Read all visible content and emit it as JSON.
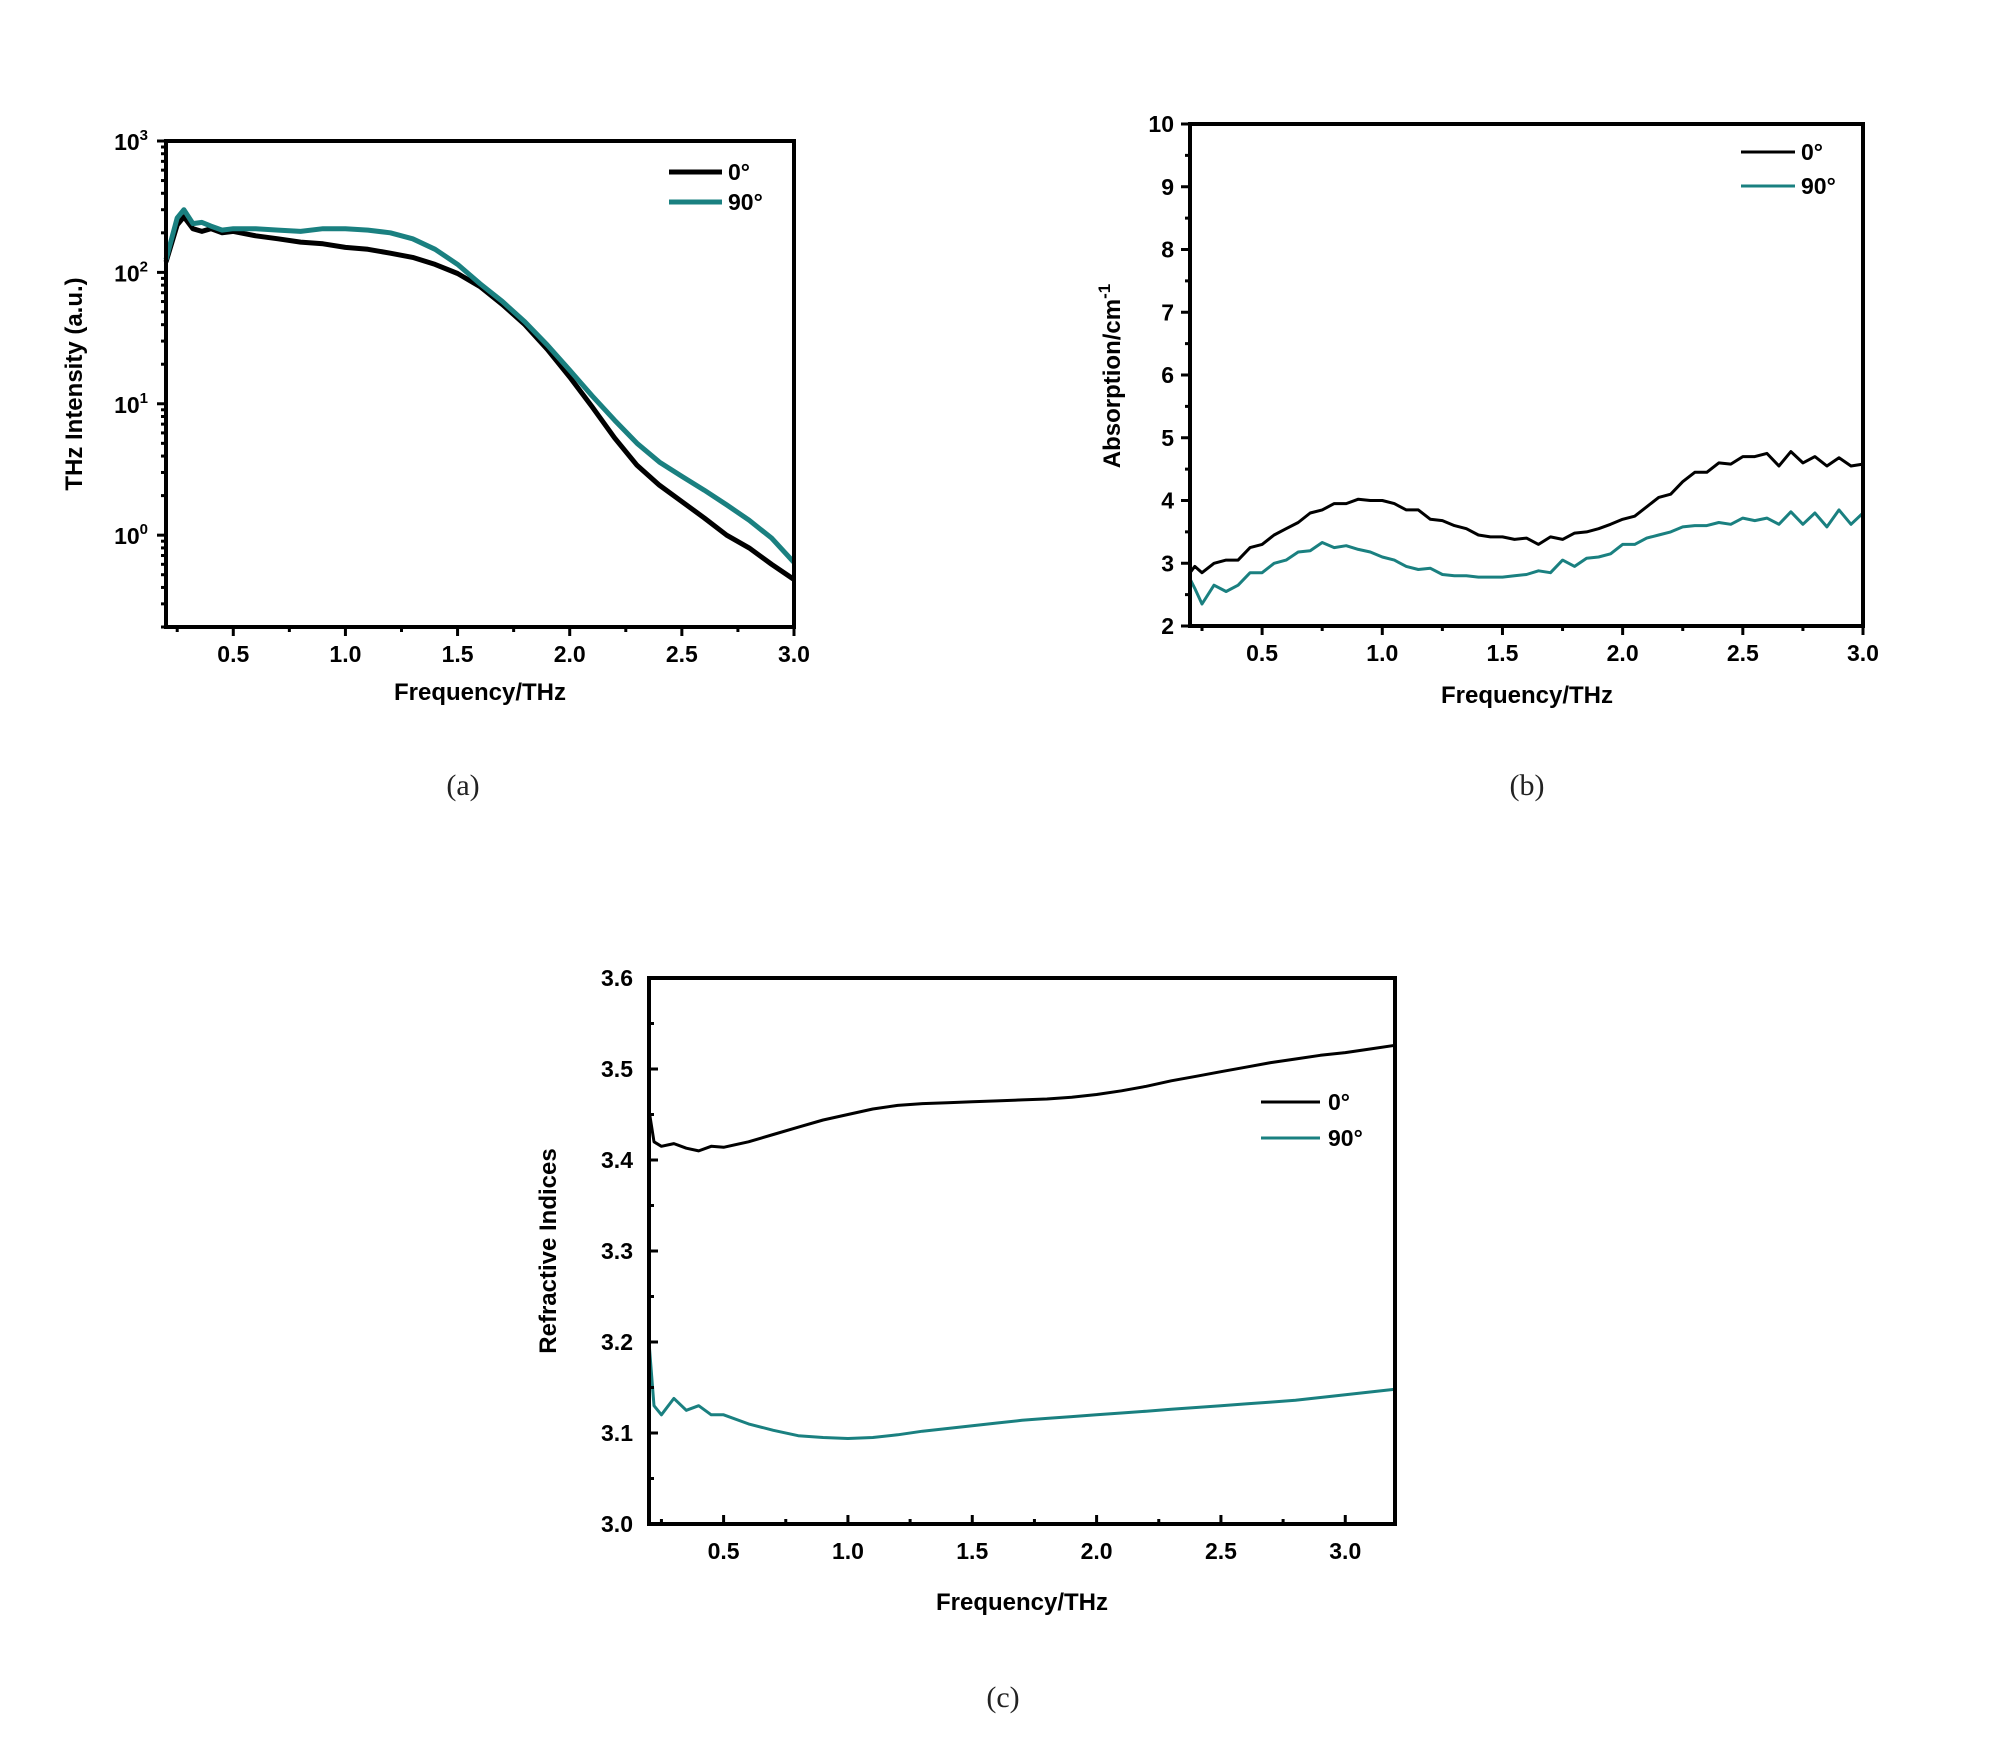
{
  "colors": {
    "series_0": "#000000",
    "series_90": "#1a8080"
  },
  "chart_data": [
    {
      "id": "a",
      "type": "line",
      "caption": "(a)",
      "xlabel": "Frequency/THz",
      "ylabel": "THz Intensity (a.u.)",
      "yscale": "log",
      "xlim": [
        0.2,
        3.0
      ],
      "ylim": [
        0.2,
        1000
      ],
      "xticks": [
        "0.5",
        "1.0",
        "1.5",
        "2.0",
        "2.5",
        "3.0"
      ],
      "xtick_values": [
        0.5,
        1.0,
        1.5,
        2.0,
        2.5,
        3.0
      ],
      "yticks": [
        {
          "base": "10",
          "exp": "0",
          "value": 1
        },
        {
          "base": "10",
          "exp": "1",
          "value": 10
        },
        {
          "base": "10",
          "exp": "2",
          "value": 100
        },
        {
          "base": "10",
          "exp": "3",
          "value": 1000
        }
      ],
      "legend": {
        "position": "top-right",
        "entries": [
          "0°",
          "90°"
        ]
      },
      "x": [
        0.2,
        0.25,
        0.28,
        0.32,
        0.36,
        0.4,
        0.45,
        0.5,
        0.6,
        0.7,
        0.8,
        0.9,
        1.0,
        1.1,
        1.2,
        1.3,
        1.4,
        1.5,
        1.6,
        1.7,
        1.8,
        1.9,
        2.0,
        2.1,
        2.2,
        2.3,
        2.4,
        2.5,
        2.6,
        2.7,
        2.8,
        2.9,
        3.0
      ],
      "series": [
        {
          "name": "0°",
          "values": [
            120,
            230,
            265,
            215,
            205,
            215,
            200,
            205,
            190,
            180,
            170,
            165,
            155,
            150,
            140,
            130,
            115,
            98,
            78,
            57,
            40,
            26,
            16,
            9.5,
            5.5,
            3.4,
            2.4,
            1.8,
            1.35,
            1.0,
            0.8,
            0.6,
            0.46
          ]
        },
        {
          "name": "90°",
          "values": [
            125,
            260,
            300,
            235,
            240,
            225,
            210,
            215,
            215,
            210,
            205,
            215,
            215,
            210,
            200,
            180,
            150,
            115,
            82,
            60,
            42,
            28,
            18,
            11.5,
            7.5,
            5.0,
            3.6,
            2.8,
            2.2,
            1.7,
            1.3,
            0.95,
            0.62
          ]
        }
      ]
    },
    {
      "id": "b",
      "type": "line",
      "caption": "(b)",
      "xlabel": "Frequency/THz",
      "ylabel": "Absorption/cm",
      "ylabel_sup": "-1",
      "xlim": [
        0.2,
        3.0
      ],
      "ylim": [
        2,
        10
      ],
      "xticks": [
        "0.5",
        "1.0",
        "1.5",
        "2.0",
        "2.5",
        "3.0"
      ],
      "xtick_values": [
        0.5,
        1.0,
        1.5,
        2.0,
        2.5,
        3.0
      ],
      "yticks": [
        "2",
        "3",
        "4",
        "5",
        "6",
        "7",
        "8",
        "9",
        "10"
      ],
      "ytick_values": [
        2,
        3,
        4,
        5,
        6,
        7,
        8,
        9,
        10
      ],
      "legend": {
        "position": "top-right",
        "entries": [
          "0°",
          "90°"
        ]
      },
      "x": [
        0.2,
        0.22,
        0.25,
        0.3,
        0.35,
        0.4,
        0.45,
        0.5,
        0.55,
        0.6,
        0.65,
        0.7,
        0.75,
        0.8,
        0.85,
        0.9,
        0.95,
        1.0,
        1.05,
        1.1,
        1.15,
        1.2,
        1.25,
        1.3,
        1.35,
        1.4,
        1.45,
        1.5,
        1.55,
        1.6,
        1.65,
        1.7,
        1.75,
        1.8,
        1.85,
        1.9,
        1.95,
        2.0,
        2.05,
        2.1,
        2.15,
        2.2,
        2.25,
        2.3,
        2.35,
        2.4,
        2.45,
        2.5,
        2.55,
        2.6,
        2.65,
        2.7,
        2.75,
        2.8,
        2.85,
        2.9,
        2.95,
        3.0
      ],
      "series": [
        {
          "name": "0°",
          "values": [
            2.85,
            2.95,
            2.85,
            3.0,
            3.05,
            3.05,
            3.25,
            3.3,
            3.45,
            3.55,
            3.65,
            3.8,
            3.85,
            3.95,
            3.95,
            4.02,
            4.0,
            4.0,
            3.95,
            3.85,
            3.85,
            3.7,
            3.68,
            3.6,
            3.55,
            3.45,
            3.42,
            3.42,
            3.38,
            3.4,
            3.3,
            3.42,
            3.38,
            3.48,
            3.5,
            3.55,
            3.62,
            3.7,
            3.75,
            3.9,
            4.05,
            4.1,
            4.3,
            4.45,
            4.45,
            4.6,
            4.58,
            4.7,
            4.7,
            4.75,
            4.55,
            4.78,
            4.6,
            4.7,
            4.55,
            4.68,
            4.55,
            4.58
          ]
        },
        {
          "name": "90°",
          "values": [
            2.75,
            2.6,
            2.35,
            2.65,
            2.55,
            2.65,
            2.85,
            2.85,
            3.0,
            3.05,
            3.18,
            3.2,
            3.33,
            3.25,
            3.28,
            3.22,
            3.18,
            3.1,
            3.05,
            2.95,
            2.9,
            2.92,
            2.82,
            2.8,
            2.8,
            2.78,
            2.78,
            2.78,
            2.8,
            2.82,
            2.88,
            2.85,
            3.05,
            2.95,
            3.08,
            3.1,
            3.15,
            3.3,
            3.3,
            3.4,
            3.45,
            3.5,
            3.58,
            3.6,
            3.6,
            3.65,
            3.62,
            3.72,
            3.68,
            3.72,
            3.62,
            3.82,
            3.62,
            3.8,
            3.58,
            3.85,
            3.62,
            3.8
          ]
        }
      ]
    },
    {
      "id": "c",
      "type": "line",
      "caption": "(c)",
      "xlabel": "Frequency/THz",
      "ylabel": "Refractive Indices",
      "xlim": [
        0.2,
        3.2
      ],
      "ylim": [
        3.0,
        3.6
      ],
      "xticks": [
        "0.5",
        "1.0",
        "1.5",
        "2.0",
        "2.5",
        "3.0"
      ],
      "xtick_values": [
        0.5,
        1.0,
        1.5,
        2.0,
        2.5,
        3.0
      ],
      "yticks": [
        "3.0",
        "3.1",
        "3.2",
        "3.3",
        "3.4",
        "3.5",
        "3.6"
      ],
      "ytick_values": [
        3.0,
        3.1,
        3.2,
        3.3,
        3.4,
        3.5,
        3.6
      ],
      "legend": {
        "position": "right",
        "entries": [
          "0°",
          "90°"
        ]
      },
      "x": [
        0.2,
        0.22,
        0.25,
        0.3,
        0.35,
        0.4,
        0.45,
        0.5,
        0.6,
        0.7,
        0.8,
        0.9,
        1.0,
        1.1,
        1.2,
        1.3,
        1.4,
        1.5,
        1.6,
        1.7,
        1.8,
        1.9,
        2.0,
        2.1,
        2.2,
        2.3,
        2.4,
        2.5,
        2.6,
        2.7,
        2.8,
        2.9,
        3.0,
        3.1,
        3.2
      ],
      "series": [
        {
          "name": "0°",
          "values": [
            3.455,
            3.42,
            3.415,
            3.418,
            3.413,
            3.41,
            3.415,
            3.414,
            3.42,
            3.428,
            3.436,
            3.444,
            3.45,
            3.456,
            3.46,
            3.462,
            3.463,
            3.464,
            3.465,
            3.466,
            3.467,
            3.469,
            3.472,
            3.476,
            3.481,
            3.487,
            3.492,
            3.497,
            3.502,
            3.507,
            3.511,
            3.515,
            3.518,
            3.522,
            3.526
          ]
        },
        {
          "name": "90°",
          "values": [
            3.2,
            3.13,
            3.12,
            3.138,
            3.125,
            3.13,
            3.12,
            3.12,
            3.11,
            3.103,
            3.097,
            3.095,
            3.094,
            3.095,
            3.098,
            3.102,
            3.105,
            3.108,
            3.111,
            3.114,
            3.116,
            3.118,
            3.12,
            3.122,
            3.124,
            3.126,
            3.128,
            3.13,
            3.132,
            3.134,
            3.136,
            3.139,
            3.142,
            3.145,
            3.148
          ]
        }
      ]
    }
  ]
}
